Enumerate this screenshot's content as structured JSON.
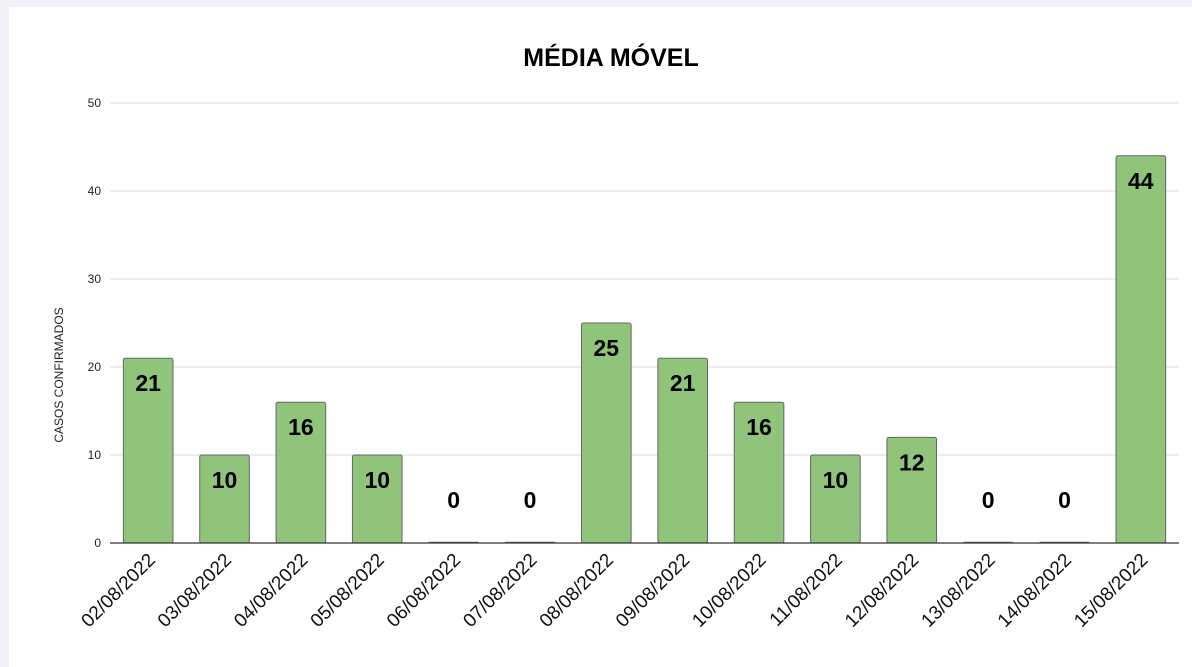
{
  "chart_data": {
    "type": "bar",
    "title": "MÉDIA MÓVEL",
    "xlabel": "",
    "ylabel": "CASOS CONFIRMADOS",
    "categories": [
      "02/08/2022",
      "03/08/2022",
      "04/08/2022",
      "05/08/2022",
      "06/08/2022",
      "07/08/2022",
      "08/08/2022",
      "09/08/2022",
      "10/08/2022",
      "11/08/2022",
      "12/08/2022",
      "13/08/2022",
      "14/08/2022",
      "15/08/2022"
    ],
    "values": [
      21,
      10,
      16,
      10,
      0,
      0,
      25,
      21,
      16,
      10,
      12,
      0,
      0,
      44
    ],
    "ylim": [
      0,
      50
    ],
    "yticks": [
      0,
      10,
      20,
      30,
      40,
      50
    ],
    "grid": true,
    "data_labels": true,
    "legend": "none",
    "colors": {
      "bar": "#8fc47a",
      "bar_stroke": "#666666",
      "grid": "#d9d9d9",
      "axis": "#333333"
    }
  }
}
